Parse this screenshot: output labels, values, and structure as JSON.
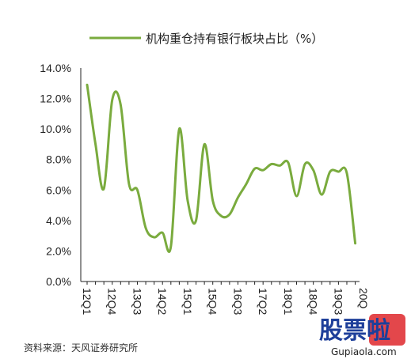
{
  "chart_data": {
    "type": "line",
    "title": "",
    "xlabel": "",
    "ylabel": "",
    "ylim": [
      0,
      14
    ],
    "y_ticks": [
      "0.0%",
      "2.0%",
      "4.0%",
      "6.0%",
      "8.0%",
      "10.0%",
      "12.0%",
      "14.0%"
    ],
    "x_tick_labels": [
      "12Q1",
      "12Q4",
      "13Q3",
      "14Q2",
      "15Q1",
      "15Q4",
      "16Q3",
      "17Q2",
      "18Q1",
      "18Q4",
      "19Q3",
      "20Q"
    ],
    "grid": false,
    "legend_position": "top-center",
    "series": [
      {
        "name": "机构重仓持有银行板块占比（%）",
        "color": "#7aab3e",
        "x": [
          "12Q1",
          "12Q2",
          "12Q3",
          "12Q4",
          "13Q1",
          "13Q2",
          "13Q3",
          "13Q4",
          "14Q1",
          "14Q2",
          "14Q3",
          "14Q4",
          "15Q1",
          "15Q2",
          "15Q3",
          "15Q4",
          "16Q1",
          "16Q2",
          "16Q3",
          "16Q4",
          "17Q1",
          "17Q2",
          "17Q3",
          "17Q4",
          "18Q1",
          "18Q2",
          "18Q3",
          "18Q4",
          "19Q1",
          "19Q2",
          "19Q3",
          "19Q4",
          "20Q1"
        ],
        "values": [
          12.9,
          9.0,
          6.1,
          11.9,
          11.6,
          6.4,
          6.0,
          3.5,
          2.9,
          3.2,
          2.3,
          10.0,
          5.3,
          4.0,
          9.0,
          5.3,
          4.3,
          4.4,
          5.5,
          6.4,
          7.4,
          7.3,
          7.7,
          7.6,
          7.8,
          5.6,
          7.7,
          7.3,
          5.7,
          7.2,
          7.2,
          7.1,
          2.5
        ]
      }
    ]
  },
  "legend": {
    "label": "机构重仓持有银行板块占比（%）"
  },
  "source": "资料来源：天风证券研究所",
  "watermark": {
    "big": "股票啦",
    "url": "Gupiaola.com"
  },
  "colors": {
    "line": "#7aab3e",
    "axis": "#222222"
  }
}
